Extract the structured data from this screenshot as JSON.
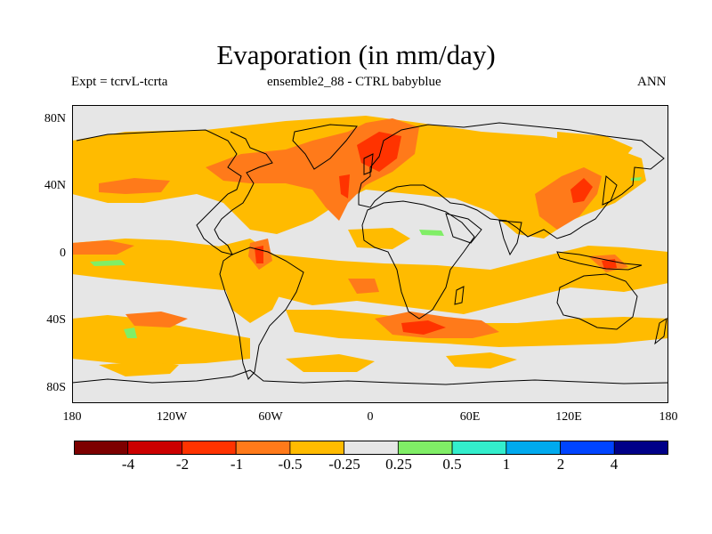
{
  "title": "Evaporation (in mm/day)",
  "subtitle_left": "Expt = tcrvL-tcrta",
  "subtitle_center": "ensemble2_88 - CTRL babyblue",
  "subtitle_right": "ANN",
  "map": {
    "projection": "cylindrical equidistant",
    "background_color": "#e6e6e6",
    "lat_ticks": [
      "80N",
      "40N",
      "0",
      "40S",
      "80S"
    ],
    "lon_ticks": [
      "180",
      "120W",
      "60W",
      "0",
      "60E",
      "120E",
      "180"
    ]
  },
  "colorbar": {
    "colors": [
      "#7d0000",
      "#cc0000",
      "#ff3300",
      "#ff7a1a",
      "#ffbb00",
      "#e6e6e6",
      "#80ee66",
      "#33eecc",
      "#00aaee",
      "#0044ff",
      "#000088"
    ],
    "labels": [
      "-4",
      "-2",
      "-1",
      "-0.5",
      "-0.25",
      "0.25",
      "0.5",
      "1",
      "2",
      "4"
    ]
  },
  "field_colors": {
    "light_orange": "#ffbb00",
    "orange": "#ff7a1a",
    "red_orange": "#ff3300",
    "light_green": "#80ee66"
  }
}
